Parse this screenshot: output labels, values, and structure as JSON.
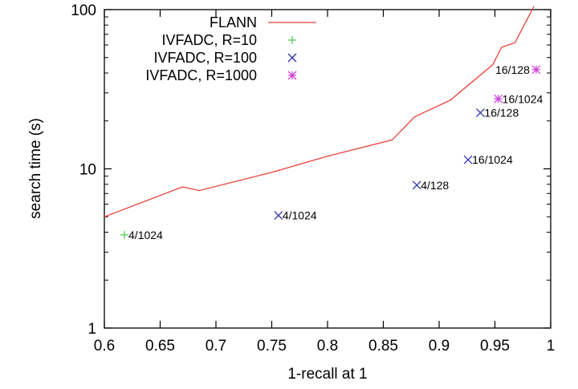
{
  "chart_data": {
    "type": "line",
    "title": "",
    "xlabel": "1-recall at 1",
    "ylabel": "search time (s)",
    "xlim": [
      0.6,
      1.0
    ],
    "ylim": [
      1,
      100
    ],
    "yscale": "log",
    "xticks": [
      "0.6",
      "0.65",
      "0.7",
      "0.75",
      "0.8",
      "0.85",
      "0.9",
      "0.95",
      "1"
    ],
    "xtick_values": [
      0.6,
      0.65,
      0.7,
      0.75,
      0.8,
      0.85,
      0.9,
      0.95,
      1.0
    ],
    "yticks": [
      "1",
      "10",
      "100"
    ],
    "ytick_values": [
      1,
      10,
      100
    ],
    "grid": false,
    "legend_position": "top-left",
    "series": [
      {
        "name": "FLANN",
        "kind": "line",
        "color": "#e8413a",
        "x": [
          0.6,
          0.67,
          0.685,
          0.75,
          0.8,
          0.858,
          0.878,
          0.91,
          0.948,
          0.956,
          0.968,
          0.985
        ],
        "y": [
          5.0,
          7.7,
          7.3,
          9.5,
          12.0,
          15.2,
          21.2,
          27.0,
          45.0,
          58.0,
          62.0,
          105.0
        ]
      },
      {
        "name": "IVFADC, R=10",
        "kind": "scatter",
        "marker": "plus",
        "color": "#55cc55",
        "x": [
          0.618
        ],
        "y": [
          3.85
        ],
        "labels": [
          "4/1024"
        ]
      },
      {
        "name": "IVFADC, R=100",
        "kind": "scatter",
        "marker": "cross",
        "color": "#3030b0",
        "x": [
          0.756,
          0.88,
          0.926,
          0.937
        ],
        "y": [
          5.1,
          7.9,
          11.4,
          22.5
        ],
        "labels": [
          "4/1024",
          "4/128",
          "16/1024",
          "16/128"
        ]
      },
      {
        "name": "IVFADC, R=1000",
        "kind": "scatter",
        "marker": "star",
        "color": "#d040d8",
        "x": [
          0.953,
          0.987
        ],
        "y": [
          27.5,
          42.0
        ],
        "labels": [
          "16/1024",
          "16/128"
        ]
      }
    ]
  }
}
